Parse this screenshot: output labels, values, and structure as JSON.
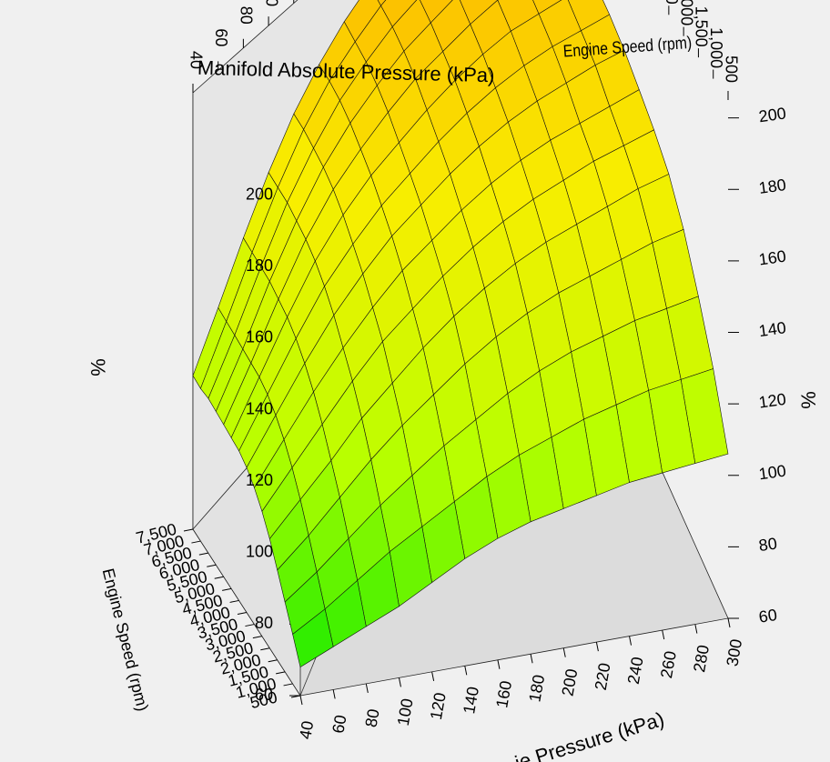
{
  "chart_data": {
    "type": "surface3d",
    "title": "Manifold Absolute Pressure (kPa)",
    "x_axis": {
      "label": "Manifold Absolute Pressure (kPa)",
      "label_partial": "ie Pressure (kPa)",
      "ticks": [
        "40",
        "60",
        "80",
        "100",
        "120",
        "140",
        "160",
        "180",
        "200",
        "220",
        "240",
        "260",
        "280",
        "300"
      ],
      "values": [
        40,
        60,
        80,
        100,
        120,
        140,
        160,
        180,
        200,
        220,
        240,
        260,
        280,
        300
      ]
    },
    "y_axis": {
      "label": "Engine Speed (rpm)",
      "ticks": [
        "500",
        "1,000",
        "1,500",
        "2,000",
        "2,500",
        "3,000",
        "3,500",
        "4,000",
        "4,500",
        "5,000",
        "5,500",
        "6,000",
        "6,500",
        "7,000",
        "7,500"
      ],
      "values": [
        500,
        1000,
        1500,
        2000,
        2500,
        3000,
        3500,
        4000,
        4500,
        5000,
        5500,
        6000,
        6500,
        7000,
        7500
      ]
    },
    "z_axis": {
      "label": "%",
      "ticks": [
        "60",
        "80",
        "100",
        "120",
        "140",
        "160",
        "180",
        "200"
      ],
      "range": [
        60,
        205
      ]
    },
    "z_values": [
      [
        68,
        72,
        76,
        80,
        85,
        90,
        94,
        97,
        99,
        101,
        103,
        104,
        105,
        106
      ],
      [
        74,
        79,
        85,
        91,
        96,
        101,
        106,
        110,
        113,
        116,
        118,
        120,
        121,
        122
      ],
      [
        80,
        86,
        93,
        100,
        106,
        112,
        117,
        122,
        126,
        129,
        131,
        133,
        134,
        135
      ],
      [
        86,
        93,
        101,
        109,
        116,
        122,
        128,
        133,
        137,
        140,
        142,
        144,
        146,
        147
      ],
      [
        92,
        100,
        108,
        117,
        124,
        131,
        137,
        142,
        146,
        149,
        151,
        153,
        155,
        156
      ],
      [
        97,
        106,
        115,
        124,
        132,
        138,
        144,
        149,
        153,
        156,
        158,
        160,
        161,
        162
      ],
      [
        101,
        111,
        121,
        130,
        138,
        145,
        150,
        155,
        159,
        162,
        164,
        165,
        166,
        167
      ],
      [
        104,
        115,
        126,
        136,
        144,
        151,
        156,
        161,
        165,
        168,
        170,
        171,
        172,
        172
      ],
      [
        106,
        118,
        130,
        141,
        149,
        156,
        161,
        166,
        170,
        173,
        175,
        176,
        176,
        176
      ],
      [
        107,
        120,
        133,
        145,
        154,
        161,
        166,
        171,
        175,
        178,
        180,
        180,
        180,
        179
      ],
      [
        108,
        121,
        135,
        148,
        158,
        165,
        171,
        176,
        179,
        182,
        184,
        184,
        183,
        181
      ],
      [
        109,
        122,
        137,
        150,
        161,
        169,
        175,
        180,
        183,
        186,
        187,
        187,
        186,
        183
      ],
      [
        110,
        123,
        138,
        152,
        163,
        172,
        178,
        183,
        186,
        189,
        190,
        190,
        188,
        185
      ],
      [
        110,
        124,
        139,
        153,
        165,
        174,
        180,
        185,
        188,
        191,
        192,
        192,
        190,
        187
      ],
      [
        111,
        125,
        140,
        154,
        166,
        175,
        182,
        187,
        190,
        193,
        194,
        193,
        191,
        188
      ]
    ],
    "colorscale": [
      "#00e800",
      "#b8ff00",
      "#f8ee00",
      "#ffa500"
    ]
  }
}
